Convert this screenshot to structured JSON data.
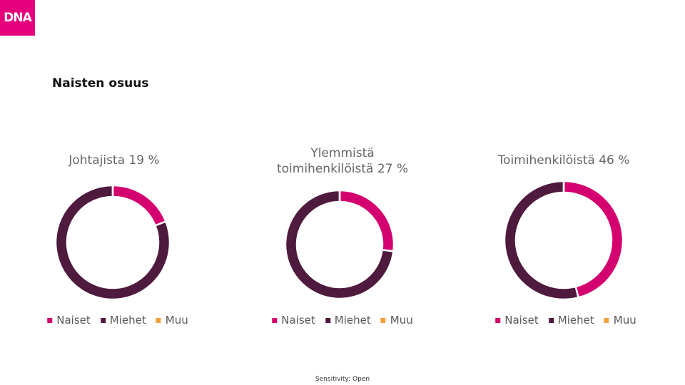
{
  "logo": "DNA",
  "heading": "Naisten osuus",
  "footer": "Sensitivity: Open",
  "chart_data": [
    {
      "type": "pie",
      "title": "Johtajista 19 %",
      "categories": [
        "Naiset",
        "Miehet",
        "Muu"
      ],
      "values": [
        19,
        81,
        0
      ],
      "colors": [
        "#d4006f",
        "#4e1a3d",
        "#f5a03c"
      ],
      "donut": true
    },
    {
      "type": "pie",
      "title": "Ylemmistä toimihenkilöistä 27 %",
      "categories": [
        "Naiset",
        "Miehet",
        "Muu"
      ],
      "values": [
        27,
        73,
        0
      ],
      "colors": [
        "#d4006f",
        "#4e1a3d",
        "#f5a03c"
      ],
      "donut": true
    },
    {
      "type": "pie",
      "title": "Toimihenkilöistä 46 %",
      "categories": [
        "Naiset",
        "Miehet",
        "Muu"
      ],
      "values": [
        46,
        54,
        0
      ],
      "colors": [
        "#d4006f",
        "#4e1a3d",
        "#f5a03c"
      ],
      "donut": true
    }
  ]
}
